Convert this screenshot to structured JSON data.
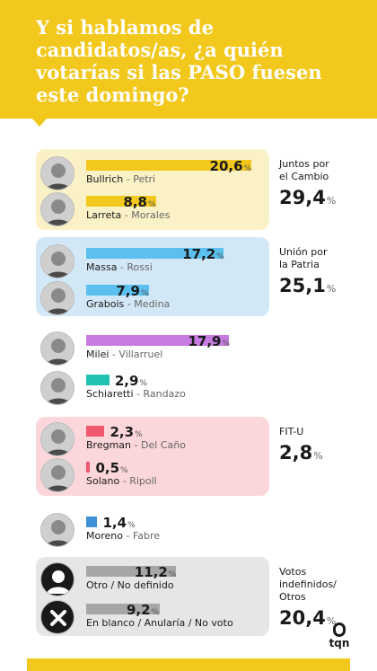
{
  "header": {
    "title": "Y si hablamos de candidatos/as, ¿a quién votarías si las PASO fuesen este domingo?"
  },
  "chart_data": {
    "type": "bar",
    "unit": "%",
    "xlim": [
      0,
      22
    ],
    "candidates": [
      {
        "name": "Bullrich",
        "vp": "Petri",
        "value": 20.6,
        "display": "20,6",
        "color": "#f2c81c",
        "group": 0
      },
      {
        "name": "Larreta",
        "vp": "Morales",
        "value": 8.8,
        "display": "8,8",
        "color": "#f2c81c",
        "group": 0
      },
      {
        "name": "Massa",
        "vp": "Rossi",
        "value": 17.2,
        "display": "17,2",
        "color": "#5bc0f0",
        "group": 1
      },
      {
        "name": "Grabois",
        "vp": "Medina",
        "value": 7.9,
        "display": "7,9",
        "color": "#5bc0f0",
        "group": 1
      },
      {
        "name": "Milei",
        "vp": "Villarruel",
        "value": 17.9,
        "display": "17,9",
        "color": "#c77be0",
        "group": null
      },
      {
        "name": "Schiaretti",
        "vp": "Randazo",
        "value": 2.9,
        "display": "2,9",
        "color": "#21c2b3",
        "group": null
      },
      {
        "name": "Bregman",
        "vp": "Del Caño",
        "value": 2.3,
        "display": "2,3",
        "color": "#f0576f",
        "group": 2
      },
      {
        "name": "Solano",
        "vp": "Ripoll",
        "value": 0.5,
        "display": "0,5",
        "color": "#f0576f",
        "group": 2
      },
      {
        "name": "Moreno",
        "vp": "Fabre",
        "value": 1.4,
        "display": "1,4",
        "color": "#3d8fd6",
        "group": null
      },
      {
        "name": "Otro / No definido",
        "vp": "",
        "value": 11.2,
        "display": "11,2",
        "color": "#a6a6a6",
        "group": 3
      },
      {
        "name": "En blanco / Anularía / No voto",
        "vp": "",
        "value": 9.2,
        "display": "9,2",
        "color": "#a6a6a6",
        "group": 3
      }
    ],
    "groups": [
      {
        "name_lines": [
          "Juntos por",
          "el Cambio"
        ],
        "total": "29,4",
        "bg": "#fbf1c6"
      },
      {
        "name_lines": [
          "Unión por",
          "la Patria"
        ],
        "total": "25,1",
        "bg": "#d3e8f7"
      },
      {
        "name_lines": [
          "FIT-U"
        ],
        "total": "2,8",
        "bg": "#fbd7db"
      },
      {
        "name_lines": [
          "Votos",
          "indefinidos/",
          "Otros"
        ],
        "total": "20,4",
        "bg": "#e6e6e6"
      }
    ],
    "percent_sign": "%",
    "icons": {
      "undecided": "user-silhouette-icon",
      "blank": "x-circle-icon"
    }
  },
  "logo": {
    "text": "tqn"
  }
}
